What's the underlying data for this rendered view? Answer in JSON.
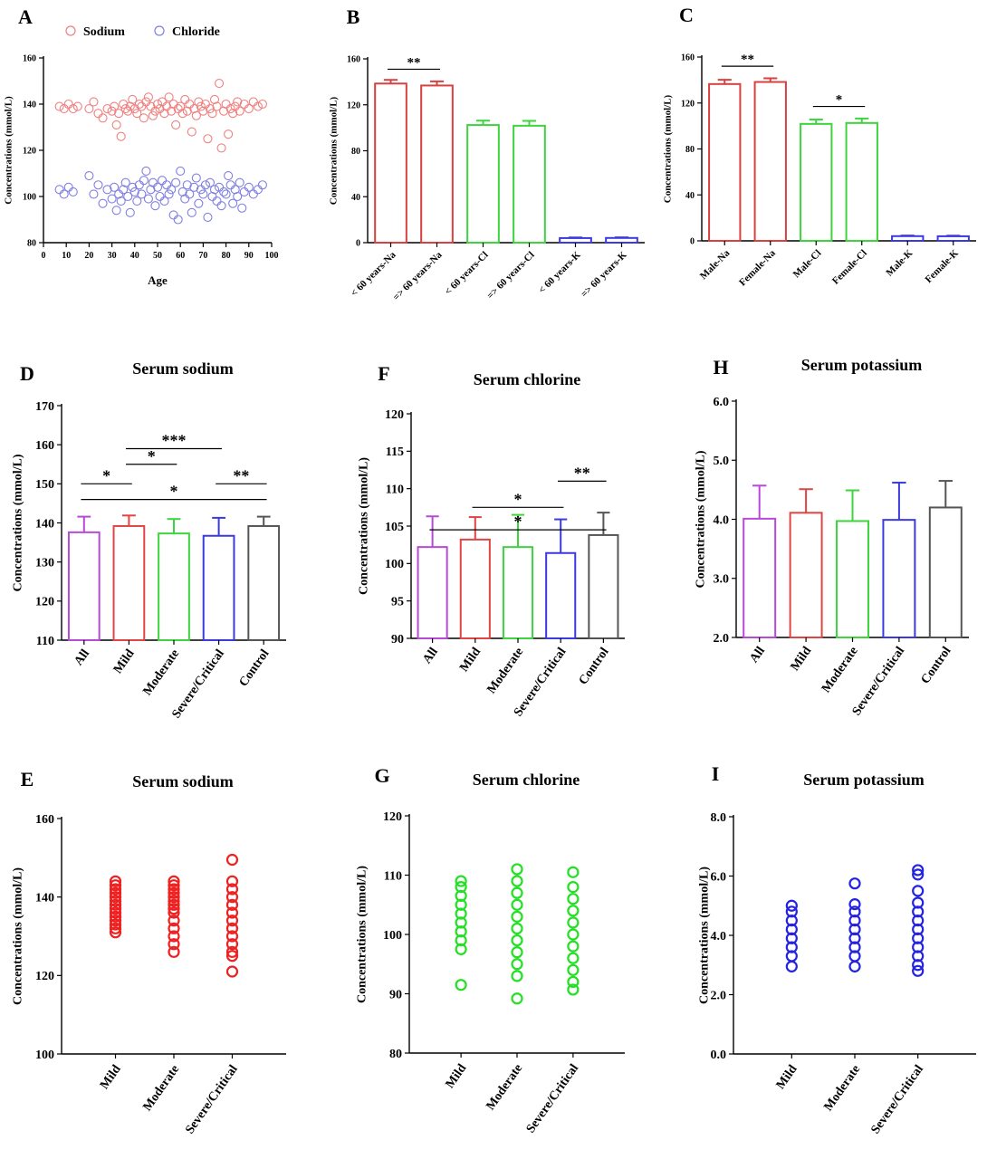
{
  "chart_data": [
    {
      "panel": "A",
      "type": "scatter",
      "title": "",
      "xlabel": "Age",
      "ylabel": "Concentrations (mmol/L)",
      "xlim": [
        0,
        100
      ],
      "ylim": [
        80,
        160
      ],
      "xticks": [
        "0",
        "10",
        "20",
        "30",
        "40",
        "50",
        "60",
        "70",
        "80",
        "90",
        "100"
      ],
      "yticks": [
        "80",
        "100",
        "120",
        "140",
        "160"
      ],
      "legend": {
        "position": "top",
        "entries": [
          "Sodium",
          "Chloride"
        ]
      },
      "series": [
        {
          "name": "Sodium",
          "color": "#f08080",
          "marker": "open-circle",
          "points": [
            [
              7,
              139
            ],
            [
              9,
              138
            ],
            [
              11,
              140
            ],
            [
              13,
              138
            ],
            [
              15,
              139
            ],
            [
              20,
              138
            ],
            [
              22,
              141
            ],
            [
              24,
              136
            ],
            [
              26,
              134
            ],
            [
              28,
              138
            ],
            [
              30,
              137
            ],
            [
              31,
              139
            ],
            [
              32,
              131
            ],
            [
              33,
              136
            ],
            [
              34,
              126
            ],
            [
              35,
              140
            ],
            [
              36,
              138
            ],
            [
              37,
              137
            ],
            [
              38,
              139
            ],
            [
              39,
              142
            ],
            [
              40,
              138
            ],
            [
              41,
              136
            ],
            [
              42,
              140
            ],
            [
              43,
              139
            ],
            [
              44,
              134
            ],
            [
              45,
              141
            ],
            [
              46,
              143
            ],
            [
              47,
              139
            ],
            [
              48,
              135
            ],
            [
              49,
              137
            ],
            [
              50,
              140
            ],
            [
              51,
              138
            ],
            [
              52,
              141
            ],
            [
              53,
              136
            ],
            [
              54,
              139
            ],
            [
              55,
              143
            ],
            [
              56,
              137
            ],
            [
              57,
              140
            ],
            [
              58,
              131
            ],
            [
              59,
              138
            ],
            [
              60,
              139
            ],
            [
              61,
              136
            ],
            [
              62,
              142
            ],
            [
              63,
              137
            ],
            [
              64,
              140
            ],
            [
              65,
              128
            ],
            [
              66,
              138
            ],
            [
              67,
              135
            ],
            [
              68,
              141
            ],
            [
              69,
              139
            ],
            [
              70,
              137
            ],
            [
              71,
              140
            ],
            [
              72,
              125
            ],
            [
              73,
              138
            ],
            [
              74,
              136
            ],
            [
              75,
              142
            ],
            [
              76,
              139
            ],
            [
              77,
              149
            ],
            [
              78,
              121
            ],
            [
              79,
              137
            ],
            [
              80,
              140
            ],
            [
              81,
              127
            ],
            [
              82,
              138
            ],
            [
              83,
              136
            ],
            [
              84,
              139
            ],
            [
              85,
              141
            ],
            [
              86,
              137
            ],
            [
              88,
              140
            ],
            [
              90,
              138
            ],
            [
              92,
              141
            ],
            [
              94,
              139
            ],
            [
              96,
              140
            ]
          ]
        },
        {
          "name": "Chloride",
          "color": "#8080e0",
          "marker": "open-circle",
          "points": [
            [
              7,
              103
            ],
            [
              9,
              101
            ],
            [
              11,
              104
            ],
            [
              13,
              102
            ],
            [
              20,
              109
            ],
            [
              22,
              101
            ],
            [
              24,
              105
            ],
            [
              26,
              97
            ],
            [
              28,
              103
            ],
            [
              30,
              99
            ],
            [
              31,
              104
            ],
            [
              32,
              94
            ],
            [
              33,
              101
            ],
            [
              34,
              98
            ],
            [
              35,
              103
            ],
            [
              36,
              106
            ],
            [
              37,
              100
            ],
            [
              38,
              93
            ],
            [
              39,
              104
            ],
            [
              40,
              102
            ],
            [
              41,
              98
            ],
            [
              42,
              105
            ],
            [
              43,
              101
            ],
            [
              44,
              107
            ],
            [
              45,
              111
            ],
            [
              46,
              99
            ],
            [
              47,
              103
            ],
            [
              48,
              106
            ],
            [
              49,
              96
            ],
            [
              50,
              104
            ],
            [
              51,
              100
            ],
            [
              52,
              107
            ],
            [
              53,
              98
            ],
            [
              54,
              105
            ],
            [
              55,
              101
            ],
            [
              56,
              103
            ],
            [
              57,
              92
            ],
            [
              58,
              106
            ],
            [
              59,
              90
            ],
            [
              60,
              111
            ],
            [
              61,
              102
            ],
            [
              62,
              99
            ],
            [
              63,
              105
            ],
            [
              64,
              101
            ],
            [
              65,
              93
            ],
            [
              66,
              104
            ],
            [
              67,
              108
            ],
            [
              68,
              97
            ],
            [
              69,
              103
            ],
            [
              70,
              101
            ],
            [
              71,
              105
            ],
            [
              72,
              91
            ],
            [
              73,
              106
            ],
            [
              74,
              100
            ],
            [
              75,
              103
            ],
            [
              76,
              98
            ],
            [
              77,
              104
            ],
            [
              78,
              96
            ],
            [
              79,
              102
            ],
            [
              80,
              101
            ],
            [
              81,
              109
            ],
            [
              82,
              105
            ],
            [
              83,
              97
            ],
            [
              84,
              103
            ],
            [
              85,
              100
            ],
            [
              86,
              106
            ],
            [
              87,
              95
            ],
            [
              88,
              102
            ],
            [
              90,
              104
            ],
            [
              92,
              101
            ],
            [
              94,
              103
            ],
            [
              96,
              105
            ]
          ]
        }
      ]
    },
    {
      "panel": "B",
      "type": "bar",
      "title": "",
      "xlabel": "",
      "ylabel": "Concentrations (mmol/L)",
      "ylim": [
        0,
        160
      ],
      "yticks": [
        "0",
        "40",
        "80",
        "120",
        "160"
      ],
      "categories": [
        "< 60 years-Na",
        "=> 60 years-Na",
        "< 60 years-Cl",
        "=> 60 years-Cl",
        "< 60 years-K",
        "=> 60 years-K"
      ],
      "values": [
        138.5,
        136.8,
        102.4,
        101.8,
        4.0,
        4.1
      ],
      "errors": [
        3.2,
        3.6,
        3.8,
        4.2,
        0.5,
        0.5
      ],
      "colors": [
        "#d94040",
        "#d94040",
        "#3ed43e",
        "#3ed43e",
        "#3a3ae0",
        "#3a3ae0"
      ],
      "annotations": [
        {
          "from": 0,
          "to": 1,
          "label": "**",
          "y": 151
        }
      ]
    },
    {
      "panel": "C",
      "type": "bar",
      "title": "",
      "xlabel": "",
      "ylabel": "Concentrations (mmol/L)",
      "ylim": [
        0,
        160
      ],
      "yticks": [
        "0",
        "40",
        "80",
        "120",
        "160"
      ],
      "categories": [
        "Male-Na",
        "Female-Na",
        "Male-Cl",
        "Female-Cl",
        "Male-K",
        "Female-K"
      ],
      "values": [
        136.5,
        138.3,
        101.8,
        102.6,
        4.1,
        4.0
      ],
      "errors": [
        3.7,
        3.2,
        3.8,
        3.9,
        0.5,
        0.5
      ],
      "colors": [
        "#d94040",
        "#d94040",
        "#3ed43e",
        "#3ed43e",
        "#3a3ae0",
        "#3a3ae0"
      ],
      "annotations": [
        {
          "from": 0,
          "to": 1,
          "label": "**",
          "y": 152
        },
        {
          "from": 2,
          "to": 3,
          "label": "*",
          "y": 117
        }
      ]
    },
    {
      "panel": "D",
      "type": "bar",
      "title": "Serum sodium",
      "xlabel": "",
      "ylabel": "Concentrations (mmol/L)",
      "ylim": [
        110,
        170
      ],
      "yticks": [
        "110",
        "120",
        "130",
        "140",
        "150",
        "160",
        "170"
      ],
      "categories": [
        "All",
        "Mild",
        "Moderate",
        "Severe/Critical",
        "Control"
      ],
      "values": [
        137.6,
        139.2,
        137.3,
        136.7,
        139.2
      ],
      "errors": [
        4.0,
        2.7,
        3.7,
        4.6,
        2.4
      ],
      "colors": [
        "#b848d8",
        "#e04444",
        "#3ed43e",
        "#3a3ae0",
        "#555555"
      ],
      "annotations": [
        {
          "from": 0,
          "to": 1,
          "label": "*",
          "y": 150
        },
        {
          "from": 1,
          "to": 2,
          "label": "*",
          "y": 155
        },
        {
          "from": 1,
          "to": 3,
          "label": "***",
          "y": 159
        },
        {
          "from": 3,
          "to": 4,
          "label": "**",
          "y": 150
        },
        {
          "from": 0,
          "to": 4,
          "label": "*",
          "y": 146
        }
      ]
    },
    {
      "panel": "F",
      "type": "bar",
      "title": "Serum chlorine",
      "xlabel": "",
      "ylabel": "Concentrations (mmol/L)",
      "ylim": [
        90,
        120
      ],
      "yticks": [
        "90",
        "95",
        "100",
        "105",
        "110",
        "115",
        "120"
      ],
      "categories": [
        "All",
        "Mild",
        "Moderate",
        "Severe/Critical",
        "Control"
      ],
      "values": [
        102.2,
        103.2,
        102.2,
        101.4,
        103.8
      ],
      "errors": [
        4.1,
        3.0,
        4.3,
        4.5,
        3.0
      ],
      "colors": [
        "#b848d8",
        "#e04444",
        "#3ed43e",
        "#3a3ae0",
        "#555555"
      ],
      "annotations": [
        {
          "from": 3,
          "to": 4,
          "label": "**",
          "y": 111
        },
        {
          "from": 1,
          "to": 3,
          "label": "*",
          "y": 107.5
        },
        {
          "from": 0,
          "to": 4,
          "label": "*",
          "y": 104.5
        }
      ]
    },
    {
      "panel": "H",
      "type": "bar",
      "title": "Serum potassium",
      "xlabel": "",
      "ylabel": "Concentrations (mmol/L)",
      "ylim": [
        2.0,
        6.0
      ],
      "yticks": [
        "2.0",
        "3.0",
        "4.0",
        "5.0",
        "6.0"
      ],
      "categories": [
        "All",
        "Mild",
        "Moderate",
        "Severe/Critical",
        "Control"
      ],
      "values": [
        4.01,
        4.11,
        3.97,
        3.99,
        4.2
      ],
      "errors": [
        0.56,
        0.4,
        0.52,
        0.63,
        0.45
      ],
      "colors": [
        "#b848d8",
        "#e04444",
        "#3ed43e",
        "#3a3ae0",
        "#555555"
      ],
      "annotations": []
    },
    {
      "panel": "E",
      "type": "scatter",
      "title": "Serum sodium",
      "xlabel": "",
      "ylabel": "Concentrations (mmol/L)",
      "ylim": [
        100,
        160
      ],
      "yticks": [
        "100",
        "120",
        "140",
        "160"
      ],
      "categories": [
        "Mild",
        "Moderate",
        "Severe/Critical"
      ],
      "color": "#ee2020",
      "groups": [
        [
          131,
          132,
          133,
          134,
          135,
          136,
          137,
          138,
          139,
          140,
          141,
          142,
          143,
          144
        ],
        [
          126,
          128,
          130,
          132,
          134,
          136,
          137,
          138,
          139,
          140,
          141,
          142,
          143,
          144
        ],
        [
          121,
          125,
          126,
          128,
          130,
          132,
          134,
          136,
          138,
          140,
          142,
          144,
          149.5
        ]
      ]
    },
    {
      "panel": "G",
      "type": "scatter",
      "title": "Serum chlorine",
      "xlabel": "",
      "ylabel": "Concentrations (mmol/L)",
      "ylim": [
        80,
        120
      ],
      "yticks": [
        "80",
        "90",
        "100",
        "110",
        "120"
      ],
      "categories": [
        "Mild",
        "Moderate",
        "Severe/Critical"
      ],
      "color": "#22e022",
      "groups": [
        [
          91.5,
          97.5,
          99,
          100.5,
          102,
          103.5,
          105,
          106.5,
          108,
          109
        ],
        [
          89.2,
          93,
          95,
          97,
          99,
          101,
          103,
          105,
          107,
          109,
          111
        ],
        [
          90.7,
          92,
          94,
          96,
          98,
          100,
          102,
          104,
          106,
          108,
          110.5
        ]
      ]
    },
    {
      "panel": "I",
      "type": "scatter",
      "title": "Serum potassium",
      "xlabel": "",
      "ylabel": "Concentrations (mmol/L)",
      "ylim": [
        0.0,
        8.0
      ],
      "yticks": [
        "0.0",
        "2.0",
        "4.0",
        "6.0",
        "8.0"
      ],
      "categories": [
        "Mild",
        "Moderate",
        "Severe/Critical"
      ],
      "color": "#2424e0",
      "groups": [
        [
          2.95,
          3.3,
          3.6,
          3.9,
          4.2,
          4.5,
          4.8,
          5.0
        ],
        [
          2.95,
          3.3,
          3.6,
          3.9,
          4.2,
          4.5,
          4.8,
          5.05,
          5.75
        ],
        [
          2.8,
          3.0,
          3.3,
          3.6,
          3.9,
          4.2,
          4.5,
          4.8,
          5.1,
          5.5,
          6.05,
          6.2
        ]
      ]
    }
  ]
}
